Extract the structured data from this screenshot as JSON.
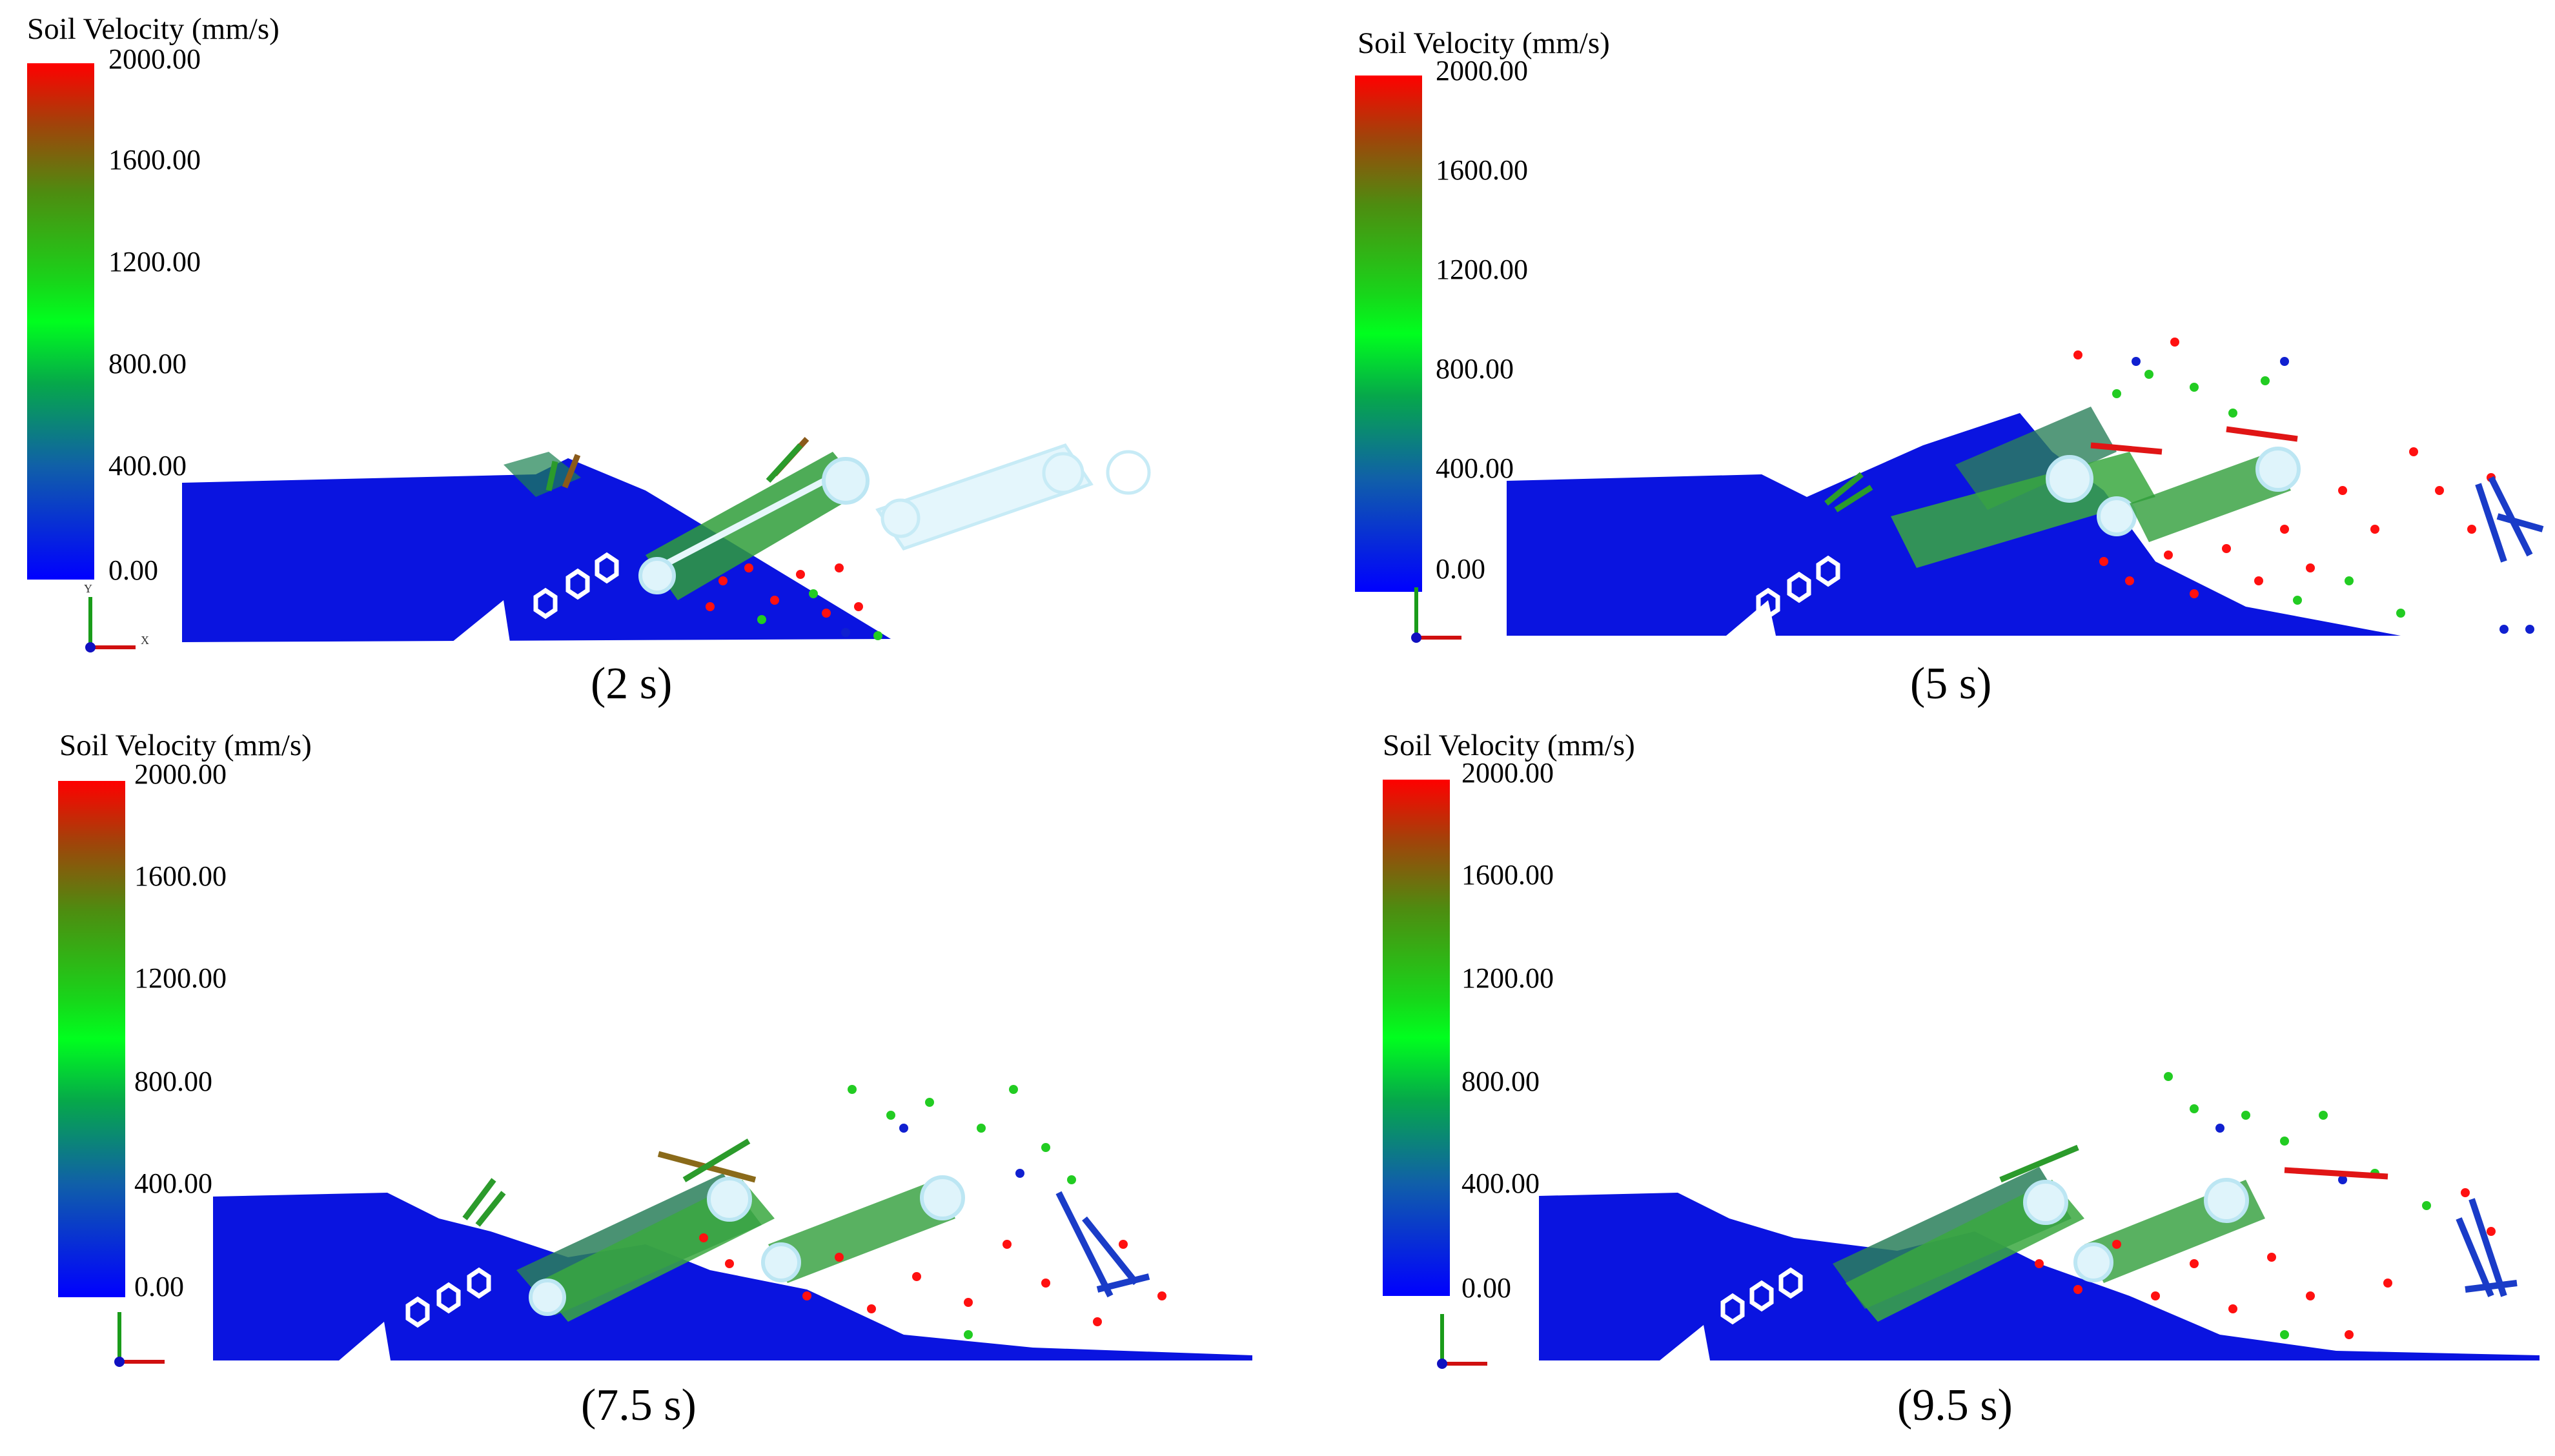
{
  "legend": {
    "title": "Soil Velocity (mm/s)",
    "ticks": [
      "2000.00",
      "1600.00",
      "1200.00",
      "800.00",
      "400.00",
      "0.00"
    ],
    "colors": {
      "max": "#ff0000",
      "upper": "#a0440a",
      "mid_upper": "#4e8c10",
      "mid": "#00ff1e",
      "lower": "#1060a8",
      "min": "#0000ff"
    }
  },
  "axes_triad": {
    "y_label": "Y",
    "x_label": "X"
  },
  "panels": [
    {
      "caption": "(2 s)"
    },
    {
      "caption": "(5 s)"
    },
    {
      "caption": "(7.5 s)"
    },
    {
      "caption": "(9.5 s)"
    }
  ]
}
